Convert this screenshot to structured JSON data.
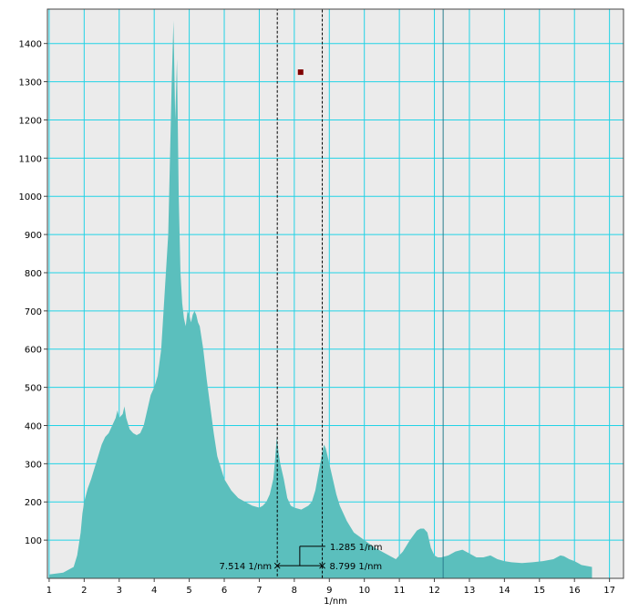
{
  "chart_data": {
    "type": "area",
    "title": "",
    "xlabel": "1/nm",
    "ylabel": "",
    "xlim": [
      0.95,
      17.4
    ],
    "ylim": [
      0,
      1490
    ],
    "grid": true,
    "x_ticks": [
      "1",
      "2",
      "3",
      "4",
      "5",
      "6",
      "7",
      "8",
      "9",
      "10",
      "11",
      "12",
      "13",
      "14",
      "15",
      "16",
      "17"
    ],
    "y_ticks": [
      "100",
      "200",
      "300",
      "400",
      "500",
      "600",
      "700",
      "800",
      "900",
      "1000",
      "1100",
      "1200",
      "1300",
      "1400"
    ],
    "colors": {
      "plot_background": "#ebebeb",
      "grid": "#22d3e6",
      "fill": "#5bbfbd",
      "marker": "#800000",
      "annotation": "#000000",
      "cursor_line": "#2a7c8c"
    },
    "series": [
      {
        "x": [
          1.0,
          1.4,
          1.7,
          1.8,
          1.9,
          1.95,
          2.0,
          2.1,
          2.2,
          2.3,
          2.4,
          2.5,
          2.6,
          2.7,
          2.8,
          2.9,
          2.95,
          3.0,
          3.1,
          3.15,
          3.2,
          3.3,
          3.4,
          3.5,
          3.6,
          3.7,
          3.8,
          3.9,
          4.0,
          4.1,
          4.2,
          4.3,
          4.4,
          4.45,
          4.5,
          4.55,
          4.6,
          4.65,
          4.7,
          4.75,
          4.8,
          4.85,
          4.9,
          4.95,
          5.0,
          5.05,
          5.1,
          5.15,
          5.2,
          5.25,
          5.3,
          5.4,
          5.5,
          5.6,
          5.7,
          5.8,
          5.9,
          6.0,
          6.2,
          6.4,
          6.6,
          6.8,
          7.0,
          7.1,
          7.2,
          7.3,
          7.4,
          7.45,
          7.5,
          7.55,
          7.6,
          7.7,
          7.8,
          7.9,
          8.0,
          8.2,
          8.4,
          8.5,
          8.6,
          8.7,
          8.8,
          8.85,
          8.9,
          9.0,
          9.1,
          9.2,
          9.3,
          9.5,
          9.7,
          10.0,
          10.3,
          10.6,
          10.9,
          11.1,
          11.3,
          11.5,
          11.6,
          11.7,
          11.8,
          11.9,
          12.0,
          12.1,
          12.2,
          12.4,
          12.6,
          12.8,
          13.0,
          13.2,
          13.4,
          13.6,
          13.8,
          14.0,
          14.2,
          14.5,
          14.8,
          15.1,
          15.4,
          15.6,
          15.7,
          15.85,
          16.0,
          16.2,
          16.5
        ],
        "y": [
          10,
          15,
          30,
          60,
          120,
          170,
          200,
          235,
          260,
          290,
          320,
          350,
          370,
          380,
          400,
          420,
          440,
          420,
          430,
          450,
          420,
          390,
          380,
          375,
          380,
          400,
          440,
          480,
          500,
          530,
          600,
          750,
          900,
          1100,
          1300,
          1460,
          1200,
          1360,
          1000,
          800,
          720,
          680,
          660,
          700,
          690,
          670,
          690,
          700,
          690,
          670,
          660,
          600,
          520,
          450,
          380,
          320,
          290,
          260,
          230,
          210,
          200,
          190,
          185,
          190,
          200,
          220,
          260,
          310,
          370,
          330,
          300,
          260,
          210,
          190,
          185,
          180,
          190,
          200,
          230,
          280,
          330,
          350,
          340,
          300,
          260,
          220,
          190,
          150,
          120,
          100,
          80,
          65,
          50,
          70,
          100,
          125,
          130,
          130,
          120,
          80,
          60,
          55,
          55,
          60,
          70,
          75,
          65,
          55,
          55,
          60,
          50,
          45,
          42,
          40,
          42,
          45,
          50,
          60,
          58,
          50,
          45,
          35,
          30
        ]
      }
    ],
    "annotations": {
      "width_label": "1.285 1/nm",
      "left_label": "7.514 1/nm",
      "right_label": "8.799 1/nm",
      "left_x": 7.514,
      "right_x": 8.799,
      "level_y": 33,
      "width_level_y": 84,
      "selection_box_x": [
        7.514,
        8.799
      ],
      "marker_x": 8.18,
      "marker_y": 1325,
      "vertical_line_x": 12.25
    }
  }
}
